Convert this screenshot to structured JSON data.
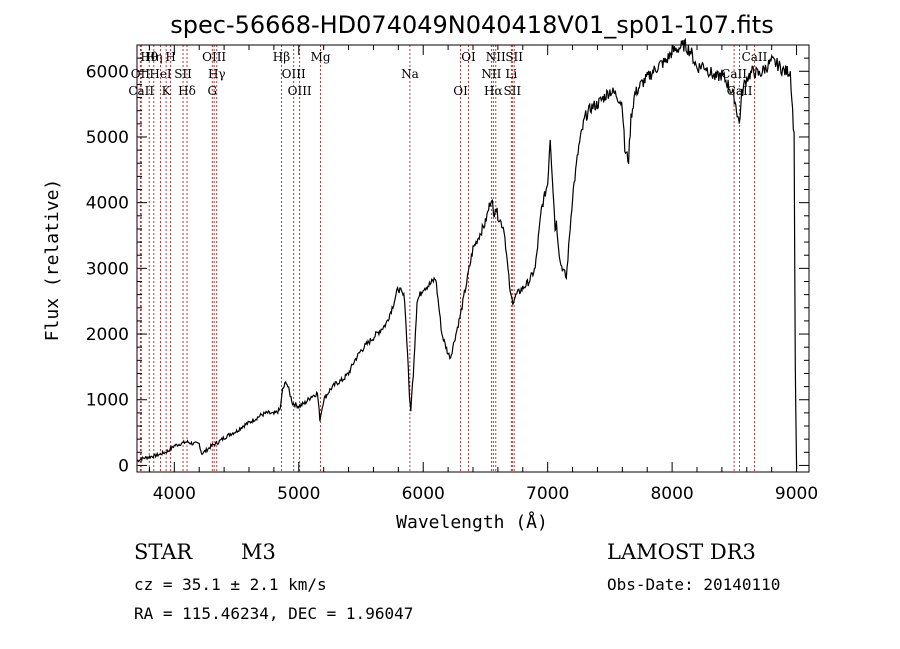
{
  "chart_data": {
    "type": "line",
    "title": "spec-56668-HD074049N040418V01_sp01-107.fits",
    "xlabel": "Wavelength (Å)",
    "ylabel": "Flux (relative)",
    "xlim": [
      3700,
      9100
    ],
    "ylim": [
      -100,
      6400
    ],
    "xticks": [
      4000,
      5000,
      6000,
      7000,
      8000,
      9000
    ],
    "yticks": [
      0,
      1000,
      2000,
      3000,
      4000,
      5000,
      6000
    ],
    "series": [
      {
        "name": "flux",
        "x": [
          3700,
          3750,
          3800,
          3850,
          3900,
          3950,
          4000,
          4050,
          4100,
          4150,
          4200,
          4220,
          4250,
          4300,
          4350,
          4400,
          4450,
          4500,
          4550,
          4600,
          4650,
          4700,
          4750,
          4800,
          4850,
          4870,
          4900,
          4950,
          5000,
          5050,
          5100,
          5150,
          5170,
          5200,
          5250,
          5300,
          5350,
          5400,
          5450,
          5500,
          5550,
          5600,
          5650,
          5700,
          5750,
          5800,
          5850,
          5880,
          5890,
          5900,
          5920,
          5950,
          6000,
          6050,
          6100,
          6150,
          6200,
          6220,
          6250,
          6300,
          6350,
          6400,
          6450,
          6500,
          6550,
          6565,
          6580,
          6600,
          6650,
          6700,
          6720,
          6750,
          6800,
          6850,
          6900,
          6950,
          7000,
          7020,
          7050,
          7060,
          7070,
          7100,
          7150,
          7200,
          7250,
          7300,
          7350,
          7400,
          7450,
          7500,
          7550,
          7600,
          7620,
          7650,
          7670,
          7700,
          7750,
          7800,
          7850,
          7900,
          7950,
          8000,
          8050,
          8100,
          8150,
          8200,
          8250,
          8300,
          8350,
          8400,
          8450,
          8500,
          8540,
          8560,
          8580,
          8600,
          8650,
          8700,
          8750,
          8800,
          8850,
          8900,
          8950,
          8980,
          8990,
          9000
        ],
        "y": [
          70,
          110,
          130,
          150,
          180,
          220,
          300,
          330,
          360,
          330,
          330,
          180,
          220,
          300,
          350,
          420,
          480,
          520,
          600,
          650,
          710,
          770,
          800,
          780,
          850,
          1150,
          1280,
          950,
          900,
          950,
          1050,
          1100,
          700,
          1000,
          1150,
          1250,
          1300,
          1400,
          1600,
          1750,
          1850,
          1950,
          2050,
          2150,
          2400,
          2700,
          2550,
          1500,
          1000,
          850,
          1400,
          2500,
          2700,
          2750,
          2850,
          2000,
          1700,
          1650,
          1900,
          2300,
          2800,
          3300,
          3500,
          3700,
          4100,
          3800,
          3950,
          3800,
          3600,
          2600,
          2500,
          2600,
          2700,
          2800,
          3000,
          3900,
          4300,
          5000,
          4000,
          3600,
          3700,
          3100,
          2850,
          4100,
          4850,
          5300,
          5450,
          5500,
          5600,
          5700,
          5650,
          5500,
          4800,
          4650,
          5300,
          5650,
          5800,
          5900,
          6000,
          6100,
          6150,
          6300,
          6350,
          6400,
          6300,
          6050,
          6100,
          6000,
          5900,
          5950,
          5800,
          5600,
          5200,
          5650,
          5800,
          5900,
          6000,
          5950,
          6050,
          6150,
          6100,
          6000,
          6000,
          5000,
          1500,
          -50
        ]
      }
    ],
    "spectral_lines": [
      {
        "name": "Hθ",
        "wavelength": 3798
      },
      {
        "name": "OII",
        "wavelength": 3727
      },
      {
        "name": "CaII",
        "wavelength": 3734
      },
      {
        "name": "Hη",
        "wavelength": 3835
      },
      {
        "name": "HeI",
        "wavelength": 3889
      },
      {
        "name": "K",
        "wavelength": 3934
      },
      {
        "name": "H",
        "wavelength": 3970
      },
      {
        "name": "SII",
        "wavelength": 4070
      },
      {
        "name": "Hδ",
        "wavelength": 4102
      },
      {
        "name": "OIII",
        "wavelength": 4320
      },
      {
        "name": "Hγ",
        "wavelength": 4341
      },
      {
        "name": "G",
        "wavelength": 4305
      },
      {
        "name": "Hβ",
        "wavelength": 4861
      },
      {
        "name": "OIII",
        "wavelength": 4959
      },
      {
        "name": "OIII",
        "wavelength": 5007
      },
      {
        "name": "Mg",
        "wavelength": 5175
      },
      {
        "name": "Na",
        "wavelength": 5893
      },
      {
        "name": "OI",
        "wavelength": 6300
      },
      {
        "name": "OI",
        "wavelength": 6364
      },
      {
        "name": "NII",
        "wavelength": 6548
      },
      {
        "name": "Hα",
        "wavelength": 6563
      },
      {
        "name": "NII",
        "wavelength": 6583
      },
      {
        "name": "Li",
        "wavelength": 6708
      },
      {
        "name": "SII",
        "wavelength": 6716
      },
      {
        "name": "SII",
        "wavelength": 6731
      },
      {
        "name": "CaII",
        "wavelength": 8498
      },
      {
        "name": "CaII",
        "wavelength": 8542
      },
      {
        "name": "CaII",
        "wavelength": 8662
      }
    ]
  },
  "info": {
    "object_class": "STAR",
    "subclass": "M3",
    "survey": "LAMOST DR3",
    "redshift": "cz = 35.1 ± 2.1 km/s",
    "obs_date": "Obs-Date: 20140110",
    "coords": "RA = 115.46234, DEC =    1.96047"
  },
  "colors": {
    "spectrum": "#000000",
    "line_markers": "#b22222",
    "axes": "#000000"
  }
}
